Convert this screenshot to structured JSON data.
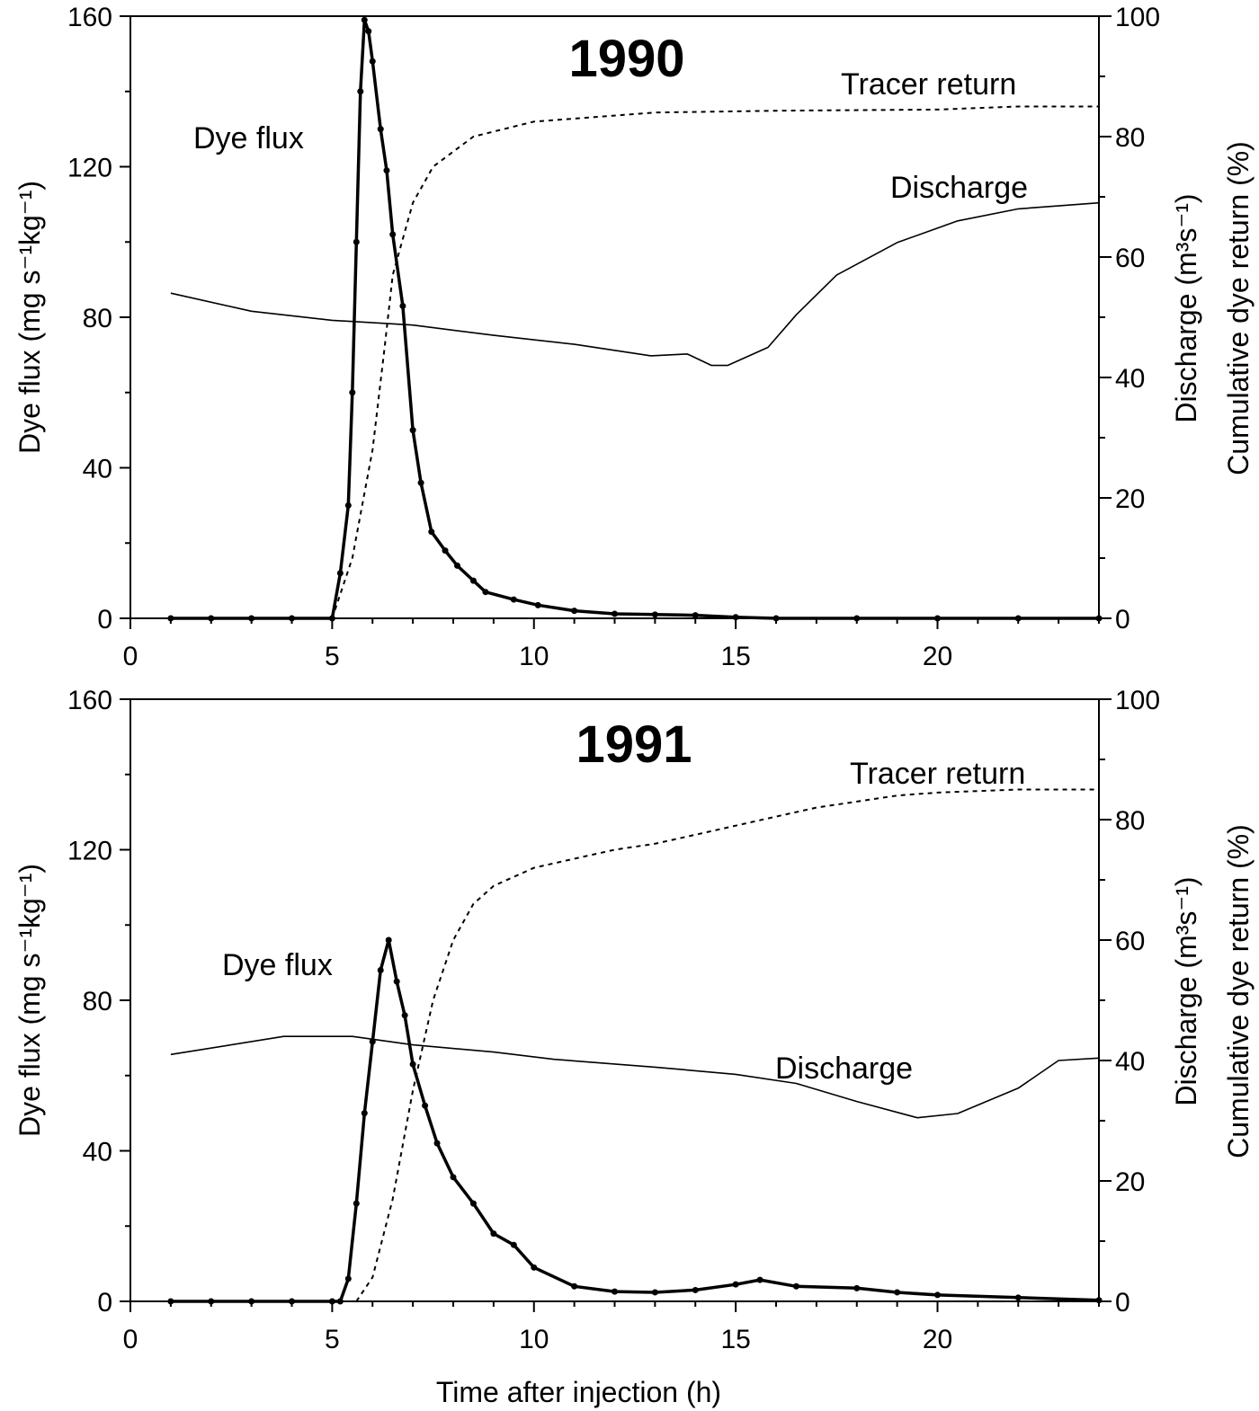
{
  "chart_data": [
    {
      "type": "line",
      "title": "1990",
      "xlabel": "",
      "ylabel": "Dye flux (mg s⁻¹kg⁻¹)",
      "ylabel_right_line1": "Discharge (m³s⁻¹)",
      "ylabel_right_line2": "Cumulative dye return (%)",
      "xlim": [
        0,
        24
      ],
      "ylim": [
        0,
        160
      ],
      "ylim_right": [
        0,
        100
      ],
      "xticks": [
        "0",
        "5",
        "10",
        "15",
        "20"
      ],
      "yticks": [
        "0",
        "40",
        "80",
        "120",
        "160"
      ],
      "yticks_right": [
        "0",
        "20",
        "40",
        "60",
        "80",
        "100"
      ],
      "grid": false,
      "annotations": {
        "dye_flux": "Dye flux",
        "tracer": "Tracer return",
        "discharge": "Discharge"
      },
      "series": [
        {
          "name": "Dye flux",
          "axis": "left",
          "style": "solid-markers",
          "x": [
            1,
            2,
            3,
            4,
            5,
            5.2,
            5.4,
            5.5,
            5.6,
            5.7,
            5.8,
            5.9,
            6.0,
            6.2,
            6.35,
            6.5,
            6.75,
            7.0,
            7.2,
            7.46,
            7.8,
            8.1,
            8.5,
            8.8,
            9.5,
            10.1,
            11,
            12,
            13,
            14,
            15,
            16,
            18,
            20,
            22,
            24
          ],
          "y": [
            0,
            0,
            0,
            0,
            0,
            12,
            30,
            60,
            100,
            140,
            159,
            156,
            148,
            130,
            119,
            102,
            83,
            50,
            36,
            23,
            18,
            14,
            10,
            7,
            5,
            3.5,
            2,
            1.2,
            1,
            0.8,
            0.3,
            0,
            0,
            0,
            0,
            0
          ]
        },
        {
          "name": "Tracer return",
          "axis": "right",
          "style": "dashed",
          "x": [
            5,
            5.5,
            6.0,
            6.3,
            6.5,
            7.0,
            7.5,
            8.5,
            10,
            13,
            16,
            20,
            22,
            24
          ],
          "y": [
            0,
            10,
            28,
            45,
            57,
            69,
            75,
            80,
            82.5,
            84,
            84.3,
            84.5,
            85,
            85
          ]
        },
        {
          "name": "Discharge",
          "axis": "right",
          "style": "thin",
          "x": [
            1,
            3,
            5,
            7,
            9,
            11,
            12.9,
            13.8,
            14.4,
            14.8,
            15.8,
            16.5,
            17.5,
            19,
            20.5,
            22,
            24
          ],
          "y": [
            54,
            51,
            49.5,
            48.7,
            47,
            45.5,
            43.6,
            43.9,
            42,
            42,
            45,
            50.4,
            57,
            62.4,
            66,
            68,
            69
          ]
        }
      ]
    },
    {
      "type": "line",
      "title": "1991",
      "xlabel": "Time after injection (h)",
      "ylabel": "Dye flux (mg s⁻¹kg⁻¹)",
      "ylabel_right_line1": "Discharge (m³s⁻¹)",
      "ylabel_right_line2": "Cumulative dye return (%)",
      "xlim": [
        0,
        24
      ],
      "ylim": [
        0,
        160
      ],
      "ylim_right": [
        0,
        100
      ],
      "xticks": [
        "0",
        "5",
        "10",
        "15",
        "20"
      ],
      "yticks": [
        "0",
        "40",
        "80",
        "120",
        "160"
      ],
      "yticks_right": [
        "0",
        "20",
        "40",
        "60",
        "80",
        "100"
      ],
      "grid": false,
      "annotations": {
        "dye_flux": "Dye flux",
        "tracer": "Tracer return",
        "discharge": "Discharge"
      },
      "series": [
        {
          "name": "Dye flux",
          "axis": "left",
          "style": "solid-markers",
          "x": [
            1,
            2,
            3,
            4,
            5,
            5.2,
            5.4,
            5.6,
            5.8,
            6.0,
            6.2,
            6.4,
            6.6,
            6.8,
            7.0,
            7.3,
            7.6,
            8.0,
            8.5,
            9.0,
            9.5,
            10,
            11,
            12,
            13,
            14,
            15,
            15.6,
            16.5,
            18,
            19,
            20,
            22,
            24
          ],
          "y": [
            0,
            0,
            0,
            0,
            0,
            0,
            6,
            26,
            50,
            69,
            88,
            96,
            85,
            76,
            63,
            52,
            42,
            33,
            26,
            18,
            15,
            9,
            4,
            2.6,
            2.4,
            3,
            4.5,
            5.7,
            4,
            3.5,
            2.4,
            1.7,
            1,
            0.3
          ]
        },
        {
          "name": "Tracer return",
          "axis": "right",
          "style": "dashed",
          "x": [
            5.6,
            6,
            6.5,
            7,
            7.5,
            8,
            8.5,
            9,
            10,
            11,
            12,
            13,
            14,
            15,
            16,
            17,
            18,
            19,
            20,
            22,
            24
          ],
          "y": [
            0,
            4,
            17,
            35,
            50,
            60,
            66,
            69,
            72,
            73.5,
            75,
            76,
            77.5,
            79,
            80.5,
            82,
            83,
            84,
            84.5,
            85,
            85
          ]
        },
        {
          "name": "Discharge",
          "axis": "right",
          "style": "thin",
          "x": [
            1,
            3.8,
            5.5,
            7,
            9,
            10.5,
            13,
            15,
            16.5,
            18,
            19.5,
            20.5,
            22,
            23,
            24
          ],
          "y": [
            41,
            44,
            44,
            42.6,
            41.4,
            40.2,
            38.9,
            37.7,
            36.2,
            33.2,
            30.5,
            31.2,
            35.4,
            40,
            40.4
          ]
        }
      ]
    }
  ]
}
